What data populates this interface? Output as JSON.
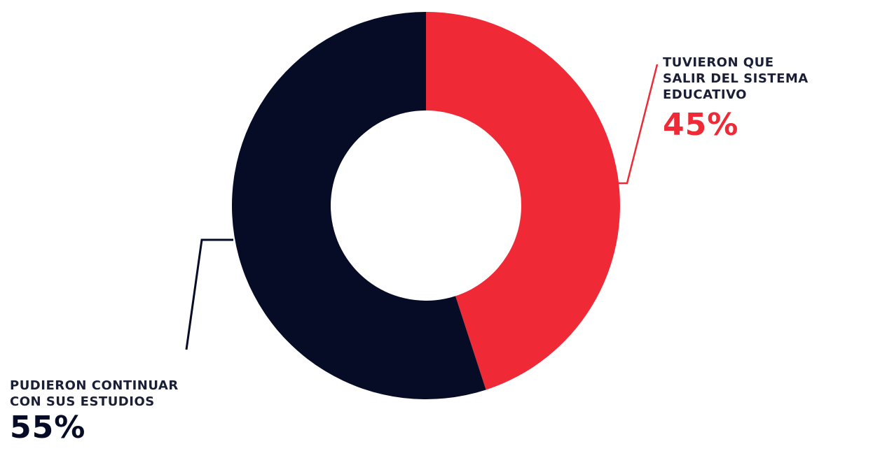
{
  "chart_data": {
    "type": "pie",
    "donut": true,
    "title": "",
    "slices": [
      {
        "label": "TUVIERON QUE SALIR DEL SISTEMA EDUCATIVO",
        "label_lines": [
          "TUVIERON QUE",
          "SALIR DEL SISTEMA",
          "EDUCATIVO"
        ],
        "value": 45,
        "value_label": "45%",
        "color": "#ef2a36"
      },
      {
        "label": "PUDIERON CONTINUAR CON SUS ESTUDIOS",
        "label_lines": [
          "PUDIERON CONTINUAR",
          "CON SUS ESTUDIOS"
        ],
        "value": 55,
        "value_label": "55%",
        "color": "#060b26"
      }
    ],
    "legend": "none",
    "label_style": "leader-lines"
  }
}
